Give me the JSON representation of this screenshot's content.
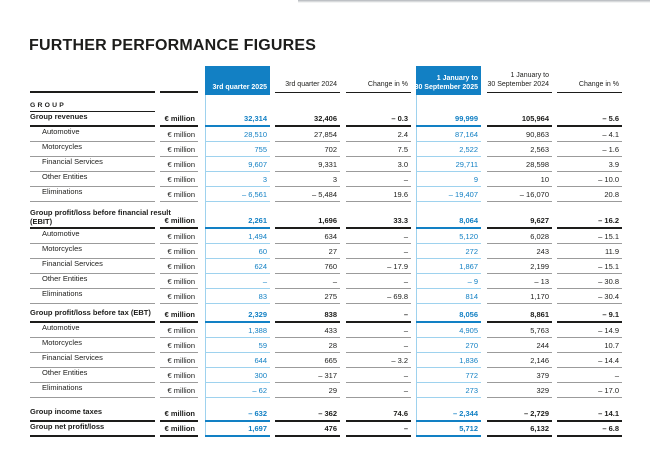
{
  "title": "FURTHER PERFORMANCE FIGURES",
  "colors": {
    "accent_blue": "#1280c4",
    "light_blue": "#9ed2ee",
    "text_black": "#1d1d1b",
    "line_gray": "#9b9b9b"
  },
  "table": {
    "section_label": "GROUP",
    "unit_label": "€ million",
    "column_headers": [
      {
        "lines": [
          "3rd quarter 2025"
        ],
        "highlighted": true
      },
      {
        "lines": [
          "3rd quarter 2024"
        ],
        "highlighted": false
      },
      {
        "lines": [
          "Change in %"
        ],
        "highlighted": false
      },
      {
        "lines": [
          "1 January to",
          "30 September 2025"
        ],
        "highlighted": true
      },
      {
        "lines": [
          "1 January to",
          "30 September 2024"
        ],
        "highlighted": false
      },
      {
        "lines": [
          "Change in %"
        ],
        "highlighted": false
      }
    ],
    "sections": [
      {
        "rows": [
          {
            "label_lines": [
              "Group revenues"
            ],
            "style": "total",
            "values": [
              "32,314",
              "32,406",
              "– 0.3",
              "99,999",
              "105,964",
              "– 5.6"
            ]
          },
          {
            "label_lines": [
              "Automotive"
            ],
            "style": "sub",
            "values": [
              "28,510",
              "27,854",
              "2.4",
              "87,164",
              "90,863",
              "– 4.1"
            ]
          },
          {
            "label_lines": [
              "Motorcycles"
            ],
            "style": "sub",
            "values": [
              "755",
              "702",
              "7.5",
              "2,522",
              "2,563",
              "– 1.6"
            ]
          },
          {
            "label_lines": [
              "Financial Services"
            ],
            "style": "sub",
            "values": [
              "9,607",
              "9,331",
              "3.0",
              "29,711",
              "28,598",
              "3.9"
            ]
          },
          {
            "label_lines": [
              "Other Entities"
            ],
            "style": "sub",
            "values": [
              "3",
              "3",
              "–",
              "9",
              "10",
              "– 10.0"
            ]
          },
          {
            "label_lines": [
              "Eliminations"
            ],
            "style": "sub",
            "values": [
              "– 6,561",
              "– 5,484",
              "19.6",
              "– 19,407",
              "– 16,070",
              "20.8"
            ]
          }
        ]
      },
      {
        "rows": [
          {
            "label_lines": [
              "Group profit/loss before financial result",
              "(EBIT)"
            ],
            "style": "total",
            "values": [
              "2,261",
              "1,696",
              "33.3",
              "8,064",
              "9,627",
              "– 16.2"
            ]
          },
          {
            "label_lines": [
              "Automotive"
            ],
            "style": "sub",
            "values": [
              "1,494",
              "634",
              "–",
              "5,120",
              "6,028",
              "– 15.1"
            ]
          },
          {
            "label_lines": [
              "Motorcycles"
            ],
            "style": "sub",
            "values": [
              "60",
              "27",
              "–",
              "272",
              "243",
              "11.9"
            ]
          },
          {
            "label_lines": [
              "Financial Services"
            ],
            "style": "sub",
            "values": [
              "624",
              "760",
              "– 17.9",
              "1,867",
              "2,199",
              "– 15.1"
            ]
          },
          {
            "label_lines": [
              "Other Entities"
            ],
            "style": "sub",
            "values": [
              "–",
              "–",
              "–",
              "– 9",
              "– 13",
              "– 30.8"
            ]
          },
          {
            "label_lines": [
              "Eliminations"
            ],
            "style": "sub",
            "values": [
              "83",
              "275",
              "– 69.8",
              "814",
              "1,170",
              "– 30.4"
            ]
          }
        ]
      },
      {
        "rows": [
          {
            "label_lines": [
              "Group profit/loss before tax (EBT)"
            ],
            "style": "total",
            "values": [
              "2,329",
              "838",
              "–",
              "8,056",
              "8,861",
              "– 9.1"
            ]
          },
          {
            "label_lines": [
              "Automotive"
            ],
            "style": "sub",
            "values": [
              "1,388",
              "433",
              "–",
              "4,905",
              "5,763",
              "– 14.9"
            ]
          },
          {
            "label_lines": [
              "Motorcycles"
            ],
            "style": "sub",
            "values": [
              "59",
              "28",
              "–",
              "270",
              "244",
              "10.7"
            ]
          },
          {
            "label_lines": [
              "Financial Services"
            ],
            "style": "sub",
            "values": [
              "644",
              "665",
              "– 3.2",
              "1,836",
              "2,146",
              "– 14.4"
            ]
          },
          {
            "label_lines": [
              "Other Entities"
            ],
            "style": "sub",
            "values": [
              "300",
              "– 317",
              "–",
              "772",
              "379",
              "–"
            ]
          },
          {
            "label_lines": [
              "Eliminations"
            ],
            "style": "sub",
            "values": [
              "– 62",
              "29",
              "–",
              "273",
              "329",
              "– 17.0"
            ]
          }
        ]
      },
      {
        "rows": [
          {
            "label_lines": [
              "Group income taxes"
            ],
            "style": "total",
            "values": [
              "– 632",
              "– 362",
              "74.6",
              "– 2,344",
              "– 2,729",
              "– 14.1"
            ]
          },
          {
            "label_lines": [
              "Group net profit/loss"
            ],
            "style": "total",
            "values": [
              "1,697",
              "476",
              "–",
              "5,712",
              "6,132",
              "– 6.8"
            ]
          }
        ]
      }
    ]
  }
}
